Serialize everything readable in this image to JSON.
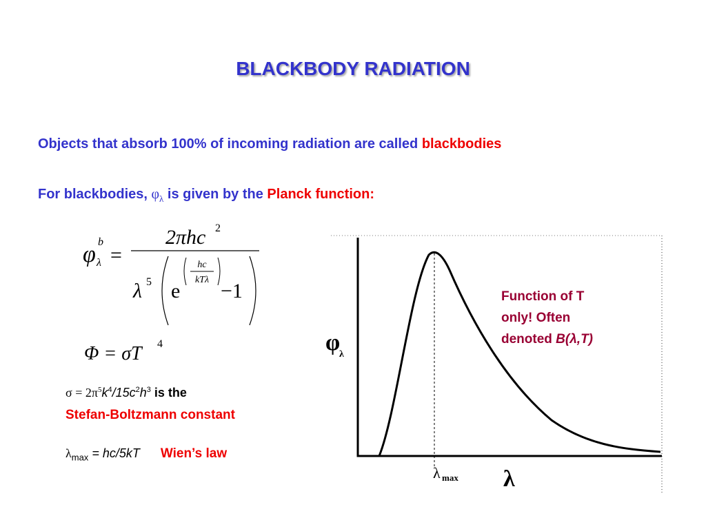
{
  "title": "BLACKBODY RADIATION",
  "intro": {
    "text": "Objects that absorb 100% of incoming radiation are called",
    "highlight": "blackbodies"
  },
  "planck_line": {
    "prefix": "For blackbodies,",
    "symbol": "φ",
    "symbol_sub": "λ",
    "middle": "is given by the",
    "highlight": "Planck function:"
  },
  "planck_equation": {
    "lhs": "φ",
    "lhs_sup": "b",
    "lhs_sub": "λ",
    "equals": "=",
    "numerator": "2πhc",
    "numerator_sup": "2",
    "lambda": "λ",
    "lambda_sup": "5",
    "exp_base": "e",
    "exp_num": "hc",
    "exp_den": "kTλ",
    "minus_one": "−1"
  },
  "stefan_equation": {
    "lhs": "Φ = σT",
    "sup": "4"
  },
  "stefan_constant": {
    "part1": "σ = 2π",
    "sup1": "5",
    "part2": "k",
    "sup2": "4",
    "part3": "/15c",
    "sup3": "2",
    "part4": "h",
    "sup4": "3",
    "tail": "is the",
    "name": "Stefan-Boltzmann constant"
  },
  "wien": {
    "symbol": "λ",
    "sub": "max",
    "rhs": "= hc/5kT",
    "name": "Wien’s law"
  },
  "graph": {
    "y_label": "φ",
    "y_label_sub": "λ",
    "x_label": "λ",
    "peak_label": "λ",
    "peak_label_sub": "max",
    "annotation_line1": "Function of T",
    "annotation_line2": "only! Often",
    "annotation_prefix": "denoted",
    "annotation_symbol": "B(λ,T)"
  }
}
